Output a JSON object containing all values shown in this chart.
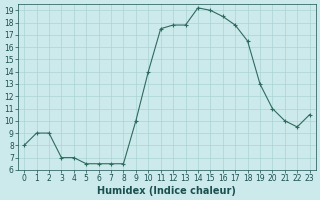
{
  "x": [
    0,
    1,
    2,
    3,
    4,
    5,
    6,
    7,
    8,
    9,
    10,
    11,
    12,
    13,
    14,
    15,
    16,
    17,
    18,
    19,
    20,
    21,
    22,
    23
  ],
  "y": [
    8.0,
    9.0,
    9.0,
    7.0,
    7.0,
    6.5,
    6.5,
    6.5,
    6.5,
    10.0,
    14.0,
    17.5,
    17.8,
    17.8,
    19.2,
    19.0,
    18.5,
    17.8,
    16.5,
    13.0,
    11.0,
    10.0,
    9.5,
    10.5
  ],
  "line_color": "#2e6b5e",
  "marker": "+",
  "marker_size": 3,
  "bg_color": "#cceaeb",
  "grid_color": "#aad4d5",
  "xlabel": "Humidex (Indice chaleur)",
  "ylim": [
    6,
    19.5
  ],
  "xlim": [
    -0.5,
    23.5
  ],
  "yticks": [
    6,
    7,
    8,
    9,
    10,
    11,
    12,
    13,
    14,
    15,
    16,
    17,
    18,
    19
  ],
  "xticks": [
    0,
    1,
    2,
    3,
    4,
    5,
    6,
    7,
    8,
    9,
    10,
    11,
    12,
    13,
    14,
    15,
    16,
    17,
    18,
    19,
    20,
    21,
    22,
    23
  ],
  "tick_fontsize": 5.5,
  "xlabel_fontsize": 7.0,
  "label_color": "#1a5050"
}
